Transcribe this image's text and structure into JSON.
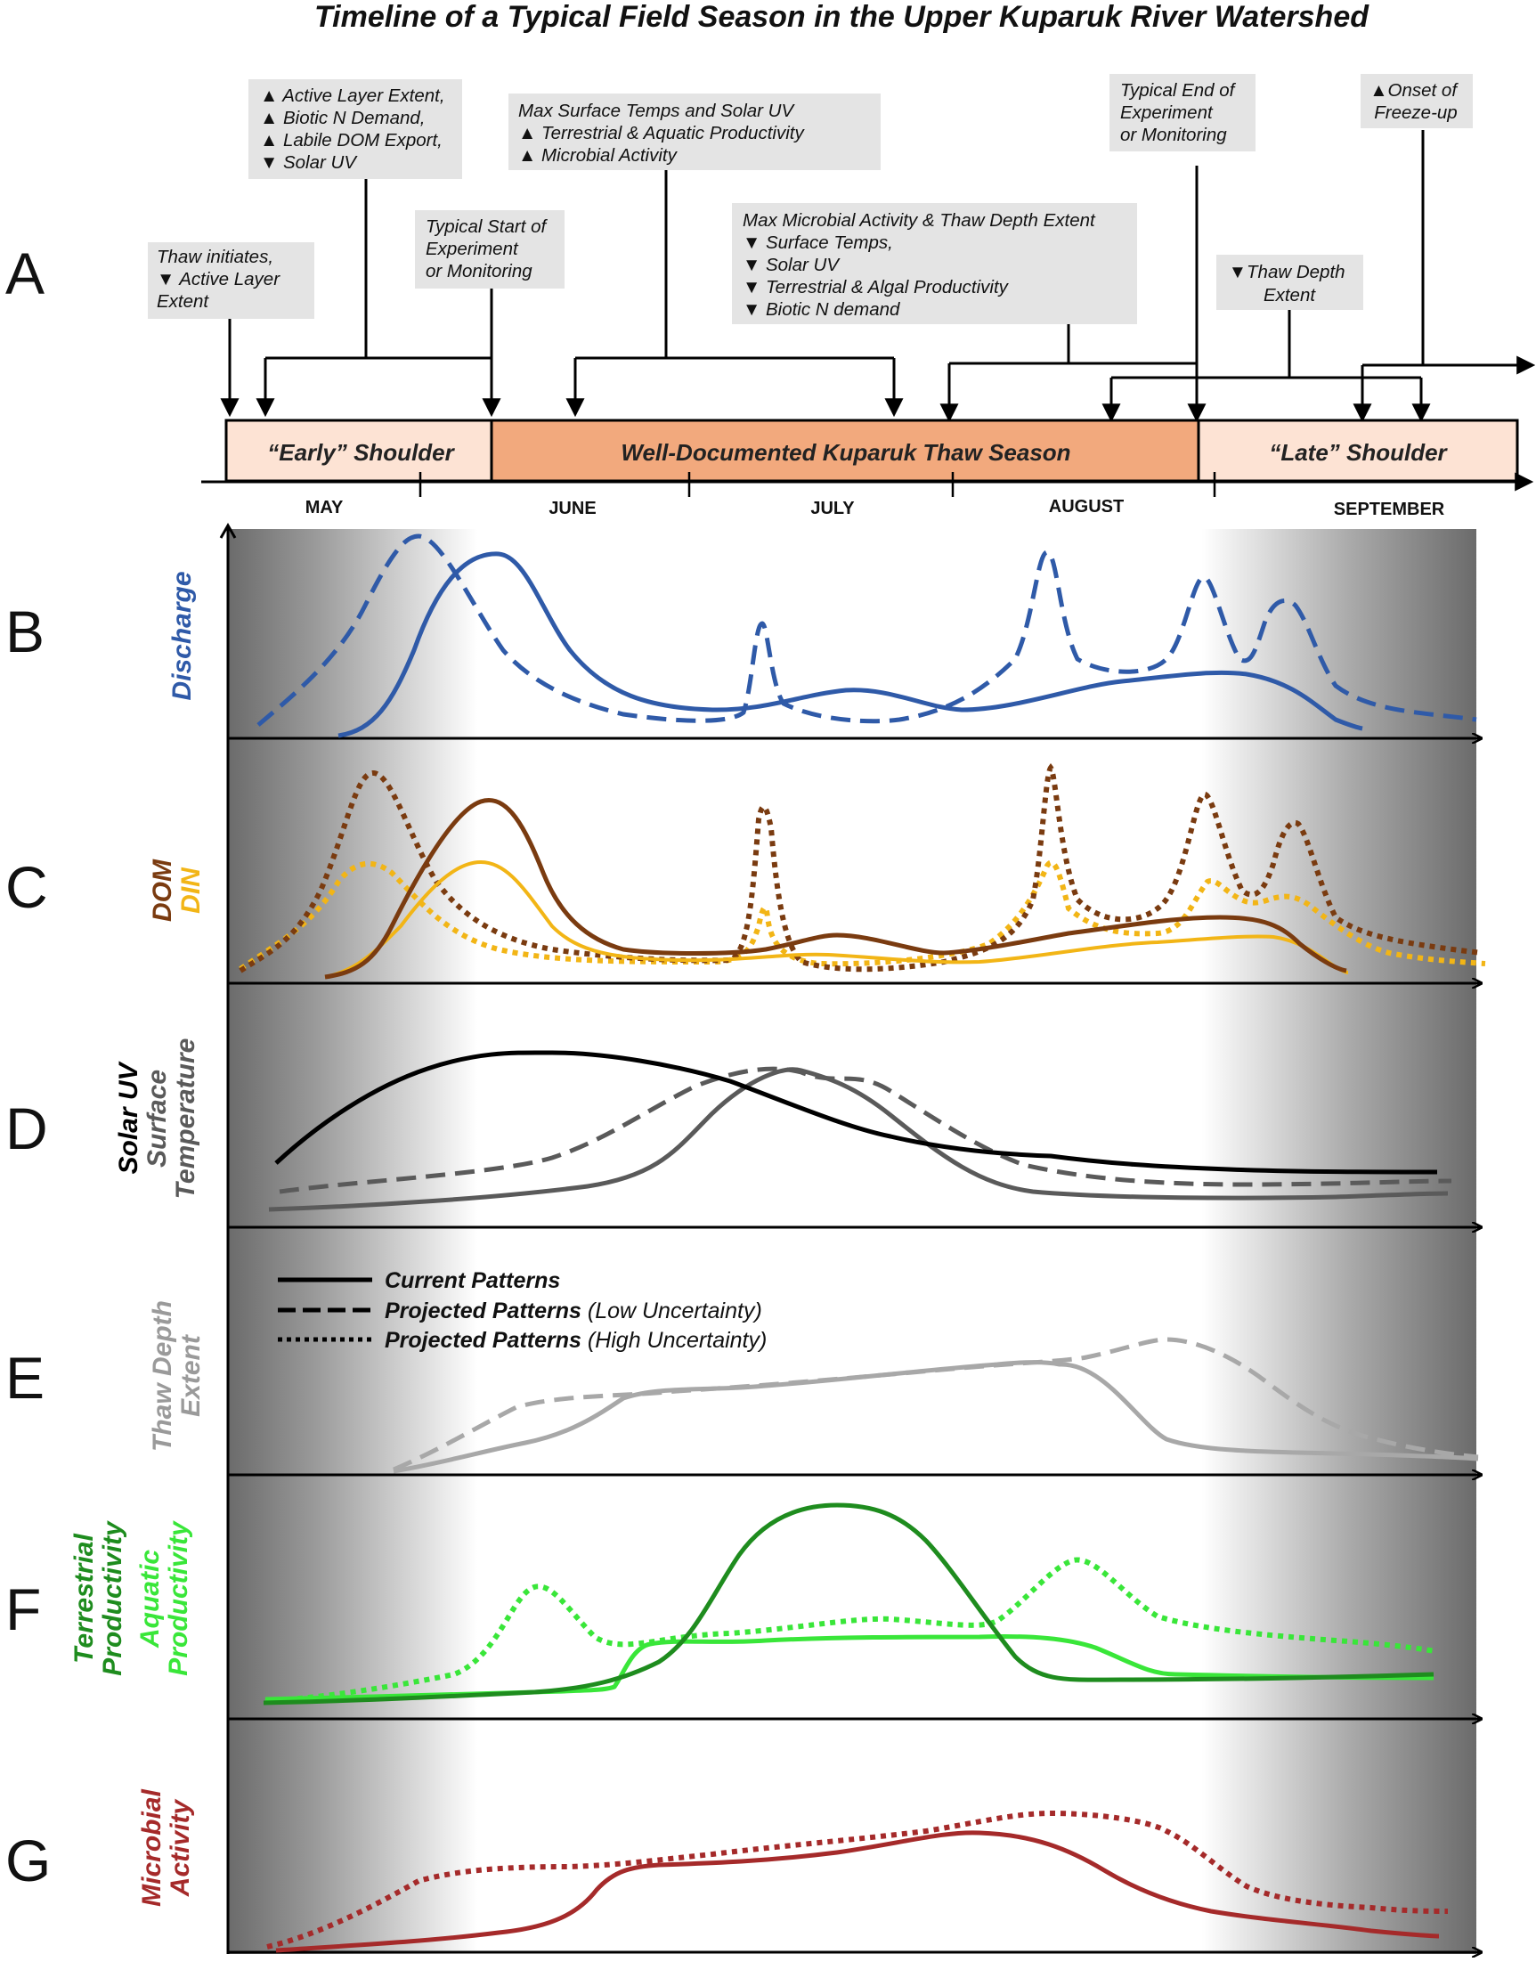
{
  "title": "Timeline of a Typical Field Season in the Upper Kuparuk River Watershed",
  "panel_labels": [
    "A",
    "B",
    "C",
    "D",
    "E",
    "F",
    "G"
  ],
  "timeline": {
    "segments": [
      "“Early” Shoulder",
      "Well-Documented  Kuparuk Thaw Season",
      "“Late” Shoulder"
    ],
    "months": [
      "MAY",
      "JUNE",
      "JULY",
      "AUGUST",
      "SEPTEMBER"
    ],
    "annotations": [
      {
        "lines": [
          "Thaw initiates,",
          "▼ Active Layer",
          "Extent"
        ]
      },
      {
        "lines": [
          "▲ Active Layer Extent,",
          "▲ Biotic N Demand,",
          "▲ Labile DOM Export,",
          "▼ Solar UV"
        ]
      },
      {
        "lines": [
          "Typical Start of",
          "Experiment",
          "or Monitoring"
        ]
      },
      {
        "lines": [
          "Max Surface Temps and Solar UV",
          "▲ Terrestrial & Aquatic Productivity",
          "▲ Microbial Activity"
        ]
      },
      {
        "lines": [
          "Max Microbial Activity & Thaw Depth Extent",
          "▼ Surface Temps,",
          "▼ Solar UV",
          "▼ Terrestrial & Algal Productivity",
          "▼ Biotic N demand"
        ]
      },
      {
        "lines": [
          "Typical End of",
          "Experiment",
          "or Monitoring"
        ]
      },
      {
        "lines": [
          "▼Thaw Depth",
          "Extent"
        ]
      },
      {
        "lines": [
          "▲Onset of",
          "Freeze-up"
        ]
      }
    ]
  },
  "panels": {
    "B": {
      "labels": [
        {
          "text": "Discharge",
          "color": "#2f5aa8"
        }
      ]
    },
    "C": {
      "labels": [
        {
          "text": "DOM",
          "color": "#7a3b10"
        },
        {
          "text": "DIN",
          "color": "#f2b516"
        }
      ]
    },
    "D": {
      "labels": [
        {
          "text": "Solar UV",
          "color": "#000000"
        },
        {
          "text": "Surface",
          "color": "#5a5a5a"
        },
        {
          "text": "Temperature",
          "color": "#5a5a5a"
        }
      ]
    },
    "E": {
      "labels": [
        {
          "text": "Thaw Depth",
          "color": "#9a9a9a"
        },
        {
          "text": "Extent",
          "color": "#9a9a9a"
        }
      ]
    },
    "F": {
      "labels": [
        {
          "text": "Terrestrial",
          "color": "#1e8c1e"
        },
        {
          "text": "Productivity",
          "color": "#1e8c1e"
        },
        {
          "text": "Aquatic",
          "color": "#39e639"
        },
        {
          "text": "Productivity",
          "color": "#39e639"
        }
      ]
    },
    "G": {
      "labels": [
        {
          "text": "Microbial",
          "color": "#a52a2a"
        },
        {
          "text": "Activity",
          "color": "#a52a2a"
        }
      ]
    }
  },
  "legend": [
    {
      "style": "solid",
      "bold": "Current Patterns",
      "italic": ""
    },
    {
      "style": "dashed",
      "bold": "Projected Patterns",
      "italic": "(Low Uncertainty)"
    },
    {
      "style": "dotted",
      "bold": "Projected Patterns",
      "italic": "(High Uncertainty)"
    }
  ],
  "colors": {
    "discharge": "#2f5aa8",
    "dom": "#7a3b10",
    "din": "#f2b516",
    "solar_uv": "#000000",
    "surface_temp": "#5a5a5a",
    "thaw": "#a8a8a8",
    "terrestrial": "#1e8c1e",
    "aquatic": "#39e639",
    "microbial": "#a52a2a",
    "early_shoulder": "#fde3d4",
    "thaw_season": "#f2a97d",
    "late_shoulder": "#fde3d4",
    "annotation_box": "#e4e4e4"
  }
}
